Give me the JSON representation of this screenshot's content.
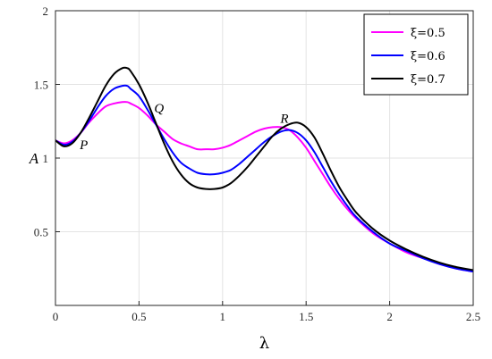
{
  "chart_data": {
    "type": "line",
    "xlabel": "λ",
    "ylabel": "A",
    "xlim": [
      0,
      2.5
    ],
    "ylim": [
      0,
      2
    ],
    "xticks": [
      0,
      0.5,
      1,
      1.5,
      2,
      2.5
    ],
    "xtick_labels": [
      "0",
      "0.5",
      "1",
      "1.5",
      "2",
      "2.5"
    ],
    "yticks": [
      0.5,
      1,
      1.5,
      2
    ],
    "ytick_labels": [
      "0.5",
      "1",
      "1.5",
      "2"
    ],
    "grid": true,
    "legend_position": "top-right",
    "annotations": [
      {
        "text": "P",
        "x": 0.17,
        "y": 1.06
      },
      {
        "text": "Q",
        "x": 0.62,
        "y": 1.31
      },
      {
        "text": "R",
        "x": 1.37,
        "y": 1.24
      }
    ],
    "series": [
      {
        "name": "ξ=0.5",
        "color": "#ff00ff",
        "x": [
          0,
          0.05,
          0.1,
          0.15,
          0.2,
          0.25,
          0.3,
          0.35,
          0.4,
          0.43,
          0.45,
          0.5,
          0.55,
          0.6,
          0.65,
          0.7,
          0.75,
          0.8,
          0.85,
          0.9,
          0.95,
          1.0,
          1.05,
          1.1,
          1.15,
          1.2,
          1.25,
          1.3,
          1.35,
          1.4,
          1.45,
          1.5,
          1.55,
          1.6,
          1.65,
          1.7,
          1.75,
          1.8,
          1.9,
          2.0,
          2.1,
          2.2,
          2.3,
          2.4,
          2.5
        ],
        "y": [
          1.12,
          1.1,
          1.12,
          1.17,
          1.24,
          1.3,
          1.35,
          1.37,
          1.38,
          1.38,
          1.37,
          1.34,
          1.29,
          1.23,
          1.18,
          1.13,
          1.1,
          1.08,
          1.06,
          1.06,
          1.06,
          1.07,
          1.09,
          1.12,
          1.15,
          1.18,
          1.2,
          1.21,
          1.21,
          1.19,
          1.14,
          1.07,
          0.98,
          0.89,
          0.8,
          0.72,
          0.65,
          0.59,
          0.49,
          0.42,
          0.36,
          0.32,
          0.28,
          0.25,
          0.23
        ]
      },
      {
        "name": "ξ=0.6",
        "color": "#0000ff",
        "x": [
          0,
          0.05,
          0.1,
          0.15,
          0.2,
          0.25,
          0.3,
          0.35,
          0.4,
          0.43,
          0.45,
          0.5,
          0.55,
          0.6,
          0.65,
          0.7,
          0.75,
          0.8,
          0.85,
          0.9,
          0.95,
          1.0,
          1.05,
          1.1,
          1.15,
          1.2,
          1.25,
          1.3,
          1.35,
          1.4,
          1.45,
          1.5,
          1.55,
          1.6,
          1.65,
          1.7,
          1.75,
          1.8,
          1.9,
          2.0,
          2.1,
          2.2,
          2.3,
          2.4,
          2.5
        ],
        "y": [
          1.12,
          1.09,
          1.11,
          1.17,
          1.25,
          1.34,
          1.42,
          1.47,
          1.49,
          1.49,
          1.47,
          1.42,
          1.33,
          1.23,
          1.13,
          1.04,
          0.97,
          0.93,
          0.9,
          0.89,
          0.89,
          0.9,
          0.92,
          0.96,
          1.01,
          1.06,
          1.11,
          1.15,
          1.18,
          1.19,
          1.17,
          1.12,
          1.04,
          0.94,
          0.84,
          0.75,
          0.67,
          0.6,
          0.5,
          0.42,
          0.37,
          0.32,
          0.28,
          0.25,
          0.23
        ]
      },
      {
        "name": "ξ=0.7",
        "color": "#000000",
        "x": [
          0,
          0.05,
          0.1,
          0.15,
          0.2,
          0.25,
          0.3,
          0.35,
          0.4,
          0.43,
          0.45,
          0.5,
          0.55,
          0.6,
          0.65,
          0.7,
          0.75,
          0.8,
          0.85,
          0.9,
          0.95,
          1.0,
          1.05,
          1.1,
          1.15,
          1.2,
          1.25,
          1.3,
          1.35,
          1.4,
          1.45,
          1.5,
          1.55,
          1.6,
          1.65,
          1.7,
          1.75,
          1.8,
          1.9,
          2.0,
          2.1,
          2.2,
          2.3,
          2.4,
          2.5
        ],
        "y": [
          1.12,
          1.08,
          1.1,
          1.17,
          1.27,
          1.38,
          1.49,
          1.57,
          1.61,
          1.61,
          1.59,
          1.5,
          1.38,
          1.24,
          1.1,
          0.98,
          0.89,
          0.83,
          0.8,
          0.79,
          0.79,
          0.8,
          0.83,
          0.88,
          0.94,
          1.01,
          1.08,
          1.15,
          1.2,
          1.23,
          1.24,
          1.21,
          1.14,
          1.03,
          0.91,
          0.8,
          0.71,
          0.63,
          0.52,
          0.44,
          0.38,
          0.33,
          0.29,
          0.26,
          0.24
        ]
      }
    ]
  }
}
